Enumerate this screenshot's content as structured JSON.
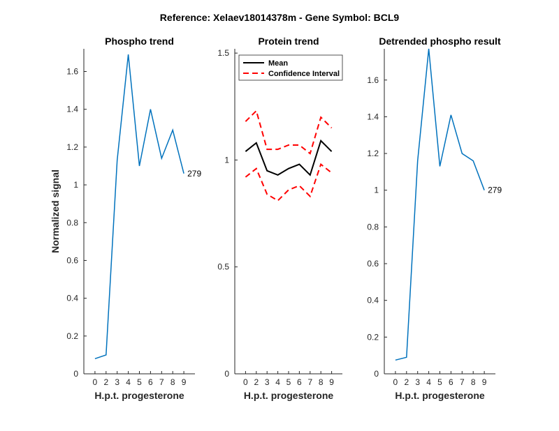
{
  "figure_title": "Reference:  Xelaev18014378m - Gene Symbol:  BCL9",
  "colors": {
    "series_blue": "#0072BD",
    "mean": "#000000",
    "ci": "#FF0000",
    "axis": "#262626"
  },
  "chart_data": [
    {
      "type": "line",
      "title": "Phospho trend",
      "xlabel": "H.p.t. progesterone",
      "ylabel": "Normalized signal",
      "x_ticks": [
        "0",
        "2",
        "3",
        "4",
        "5",
        "6",
        "7",
        "8",
        "9"
      ],
      "y_ticks": [
        "0",
        "0.2",
        "0.4",
        "0.6",
        "0.8",
        "1",
        "1.2",
        "1.4",
        "1.6"
      ],
      "y_tick_values": [
        0,
        0.2,
        0.4,
        0.6,
        0.8,
        1.0,
        1.2,
        1.4,
        1.6
      ],
      "ylim": [
        0,
        1.72
      ],
      "series": [
        {
          "values": [
            0.08,
            0.1,
            1.13,
            1.69,
            1.1,
            1.4,
            1.14,
            1.29,
            1.06
          ],
          "color": "#0072BD",
          "style": "solid"
        }
      ],
      "annotation": "279"
    },
    {
      "type": "line",
      "title": "Protein trend",
      "xlabel": "H.p.t. progesterone",
      "ylabel": "",
      "x_ticks": [
        "0",
        "2",
        "3",
        "4",
        "5",
        "6",
        "7",
        "8",
        "9"
      ],
      "y_ticks": [
        "0",
        "0.5",
        "1",
        "1.5"
      ],
      "y_tick_values": [
        0,
        0.5,
        1.0,
        1.5
      ],
      "ylim": [
        0,
        1.52
      ],
      "legend": {
        "placement": "top-left",
        "entries": [
          "Mean",
          "Confidence Interval"
        ]
      },
      "series": [
        {
          "name": "Mean",
          "values": [
            1.04,
            1.08,
            0.95,
            0.93,
            0.96,
            0.98,
            0.93,
            1.09,
            1.04
          ],
          "color": "#000000",
          "style": "solid"
        },
        {
          "name": "Confidence Interval",
          "values": [
            1.18,
            1.23,
            1.05,
            1.05,
            1.07,
            1.07,
            1.03,
            1.2,
            1.15
          ],
          "color": "#FF0000",
          "style": "dashed"
        },
        {
          "values": [
            0.92,
            0.96,
            0.84,
            0.81,
            0.86,
            0.88,
            0.83,
            0.98,
            0.94
          ],
          "color": "#FF0000",
          "style": "dashed"
        }
      ]
    },
    {
      "type": "line",
      "title": "Detrended phospho result",
      "xlabel": "H.p.t. progesterone",
      "ylabel": "",
      "x_ticks": [
        "0",
        "2",
        "3",
        "4",
        "5",
        "6",
        "7",
        "8",
        "9"
      ],
      "y_ticks": [
        "0",
        "0.2",
        "0.4",
        "0.6",
        "0.8",
        "1",
        "1.2",
        "1.4",
        "1.6"
      ],
      "y_tick_values": [
        0,
        0.2,
        0.4,
        0.6,
        0.8,
        1.0,
        1.2,
        1.4,
        1.6
      ],
      "ylim": [
        0,
        1.77
      ],
      "series": [
        {
          "values": [
            0.075,
            0.09,
            1.16,
            1.77,
            1.13,
            1.41,
            1.2,
            1.16,
            1.0
          ],
          "color": "#0072BD",
          "style": "solid"
        }
      ],
      "annotation": "279"
    }
  ]
}
